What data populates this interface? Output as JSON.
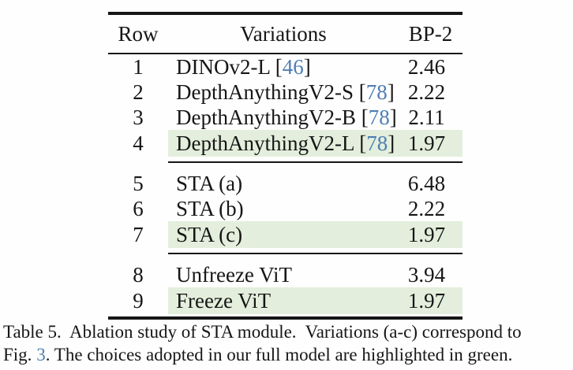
{
  "colors": {
    "highlight": "#e3efdc",
    "citation": "#4e7eb4",
    "rule": "#161616"
  },
  "table": {
    "headers": [
      "Row",
      "Variations",
      "BP-2"
    ],
    "cite_open": "[",
    "cite_close": "]",
    "groups": [
      [
        {
          "row": "1",
          "pre": "DINOv2-L ",
          "cite": "46",
          "bp2": "2.46",
          "highlight": false
        },
        {
          "row": "2",
          "pre": "DepthAnythingV2-S ",
          "cite": "78",
          "bp2": "2.22",
          "highlight": false
        },
        {
          "row": "3",
          "pre": "DepthAnythingV2-B ",
          "cite": "78",
          "bp2": "2.11",
          "highlight": false
        },
        {
          "row": "4",
          "pre": "DepthAnythingV2-L ",
          "cite": "78",
          "bp2": "1.97",
          "highlight": true
        }
      ],
      [
        {
          "row": "5",
          "pre": "STA (a)",
          "cite": null,
          "bp2": "6.48",
          "highlight": false
        },
        {
          "row": "6",
          "pre": "STA (b)",
          "cite": null,
          "bp2": "2.22",
          "highlight": false
        },
        {
          "row": "7",
          "pre": "STA (c)",
          "cite": null,
          "bp2": "1.97",
          "highlight": true
        }
      ],
      [
        {
          "row": "8",
          "pre": "Unfreeze ViT",
          "cite": null,
          "bp2": "3.94",
          "highlight": false
        },
        {
          "row": "9",
          "pre": "Freeze ViT",
          "cite": null,
          "bp2": "1.97",
          "highlight": true
        }
      ]
    ]
  },
  "caption": {
    "line1": "Table 5.  Ablation study of STA module.  Variations (a-c) correspond to",
    "line2_prefix": "Fig. ",
    "line2_link": "3",
    "line2_suffix": ". The choices adopted in our full model are highlighted in green."
  }
}
